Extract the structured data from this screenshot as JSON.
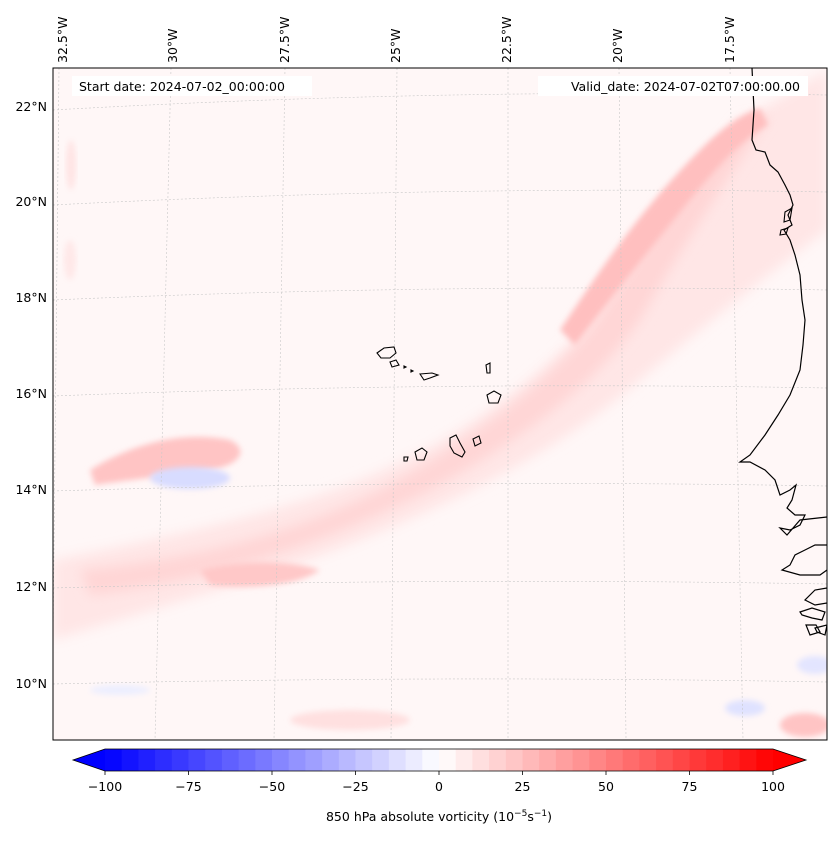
{
  "map": {
    "header": {
      "start_date": "Start date: 2024-07-02_00:00:00",
      "valid_date": "Valid_date: 2024-07-02T07:00:00.00"
    },
    "lon_labels": [
      "32.5°W",
      "30°W",
      "27.5°W",
      "25°W",
      "22.5°W",
      "20°W",
      "17.5°W"
    ],
    "lat_labels": [
      "22°N",
      "20°N",
      "18°N",
      "16°N",
      "14°N",
      "12°N",
      "10°N"
    ],
    "colorbar": {
      "ticks": [
        "−100",
        "−75",
        "−50",
        "−25",
        "0",
        "25",
        "50",
        "75",
        "100"
      ],
      "label_prefix": "850 hPa absolute vorticity (10",
      "label_exp1": "−5",
      "label_mid": "s",
      "label_exp2": "−1",
      "label_suffix": ")",
      "min": -100,
      "max": 100,
      "levels": 40,
      "colormap": "bwr",
      "extend": "both"
    },
    "colors": {
      "background_field": "#fff7f7",
      "coastline": "#000000",
      "gridline": "#c8c8c8"
    }
  }
}
